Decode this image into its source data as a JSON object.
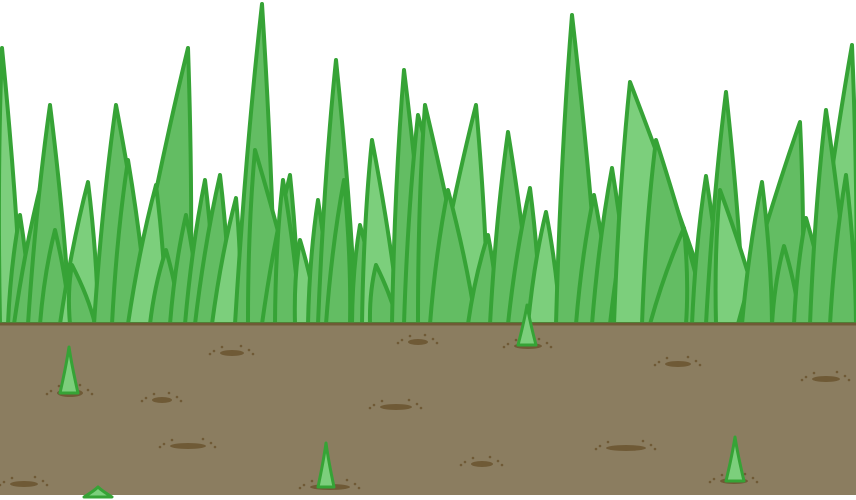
{
  "scene": {
    "kind": "side-view grass and soil game background tile",
    "colors": {
      "background": "#ffffff",
      "grass_fill": "#63bd63",
      "grass_outline": "#36a336",
      "grass_light": "#7ccf7c",
      "soil_fill": "#8b7d60",
      "soil_border": "#6f5a36",
      "hole_fill": "#6f5a36",
      "speck": "#6f5a36"
    },
    "elements": {
      "grass_blades": "grass-blade",
      "sprouts": "sprout",
      "holes": "dirt-hole",
      "ground": "ground-soil"
    }
  }
}
